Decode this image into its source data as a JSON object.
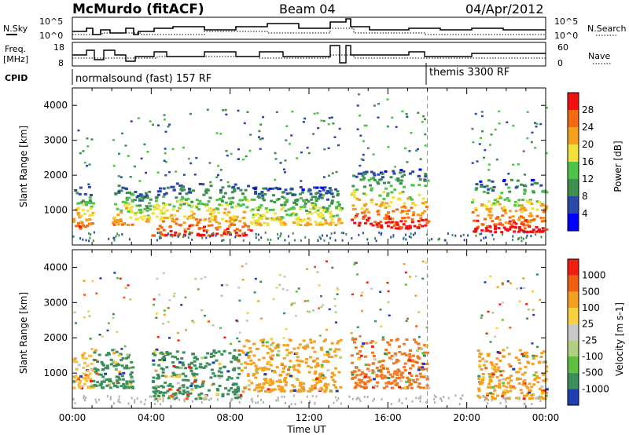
{
  "header": {
    "station": "McMurdo (fitACF)",
    "beam": "Beam 04",
    "date": "04/Apr/2012"
  },
  "params": {
    "nsky_label": "N.Sky",
    "nsearch_label": "N.Search",
    "freq_label_1": "Freq.",
    "freq_label_2": "[MHz]",
    "nave_label": "Nave",
    "cpid_label": "CPID",
    "nsky_ticks": [
      "10^5",
      "10^0"
    ],
    "nsearch_ticks": [
      "10^5",
      "10^0"
    ],
    "freq_ticks": [
      "18",
      "8"
    ],
    "nave_ticks": [
      "60",
      "0"
    ],
    "cpid_1": "normalsound (fast) 157 RF",
    "cpid_2": "themis 3300 RF"
  },
  "chart_data": [
    {
      "type": "heatmap",
      "panel": "power",
      "ylabel": "Slant Range [km]",
      "yticks": [
        "1000",
        "2000",
        "3000",
        "4000"
      ],
      "ylim": [
        0,
        4500
      ],
      "xlim": [
        0,
        24
      ],
      "colorbar_label": "Power [dB]",
      "colorbar_ticks": [
        "4",
        "8",
        "12",
        "16",
        "20",
        "24",
        "28"
      ],
      "colorbar_colors": [
        "#0000ff",
        "#2b4aa8",
        "#3f8f4f",
        "#4fc24a",
        "#f2e13a",
        "#f6a020",
        "#f56a10",
        "#f01010"
      ],
      "bands": [
        {
          "x0": 0.0,
          "x1": 1.0,
          "y0": 500,
          "y1": 1700,
          "level": 0.75
        },
        {
          "x0": 2.0,
          "x1": 3.0,
          "y0": 600,
          "y1": 1800,
          "level": 0.7
        },
        {
          "x0": 3.1,
          "x1": 3.9,
          "y0": 700,
          "y1": 1600,
          "level": 0.55
        },
        {
          "x0": 4.0,
          "x1": 9.0,
          "y0": 300,
          "y1": 1800,
          "level": 0.85
        },
        {
          "x0": 9.0,
          "x1": 13.6,
          "y0": 600,
          "y1": 1700,
          "level": 0.55
        },
        {
          "x0": 14.1,
          "x1": 18.0,
          "y0": 500,
          "y1": 2200,
          "level": 0.9
        },
        {
          "x0": 20.2,
          "x1": 24.0,
          "y0": 400,
          "y1": 1900,
          "level": 0.95
        }
      ],
      "vertical_marker": 18.0
    },
    {
      "type": "heatmap",
      "panel": "velocity",
      "ylabel": "Slant Range [km]",
      "yticks": [
        "1000",
        "2000",
        "3000",
        "4000"
      ],
      "ylim": [
        0,
        4500
      ],
      "xlim": [
        0,
        24
      ],
      "xticks": [
        "00:00",
        "04:00",
        "08:00",
        "12:00",
        "16:00",
        "20:00",
        "00:00"
      ],
      "xlabel": "Time UT",
      "colorbar_label": "Velocity [m s-1]",
      "colorbar_ticks": [
        "1000",
        "500",
        "100",
        "25",
        "-25",
        "-100",
        "-500",
        "-1000"
      ],
      "colorbar_colors": [
        "#1f3fb0",
        "#3a8f5a",
        "#5fbf3f",
        "#b0d080",
        "#c8c8c8",
        "#f8d040",
        "#f5a020",
        "#f06010",
        "#f02010"
      ],
      "bands": [
        {
          "x0": 0.0,
          "x1": 1.0,
          "y0": 600,
          "y1": 1600,
          "color": "#f5c040"
        },
        {
          "x0": 1.0,
          "x1": 3.0,
          "y0": 600,
          "y1": 1700,
          "color": "#3a8f5a"
        },
        {
          "x0": 4.0,
          "x1": 8.5,
          "y0": 300,
          "y1": 1700,
          "color": "#3a8f5a"
        },
        {
          "x0": 8.5,
          "x1": 13.6,
          "y0": 500,
          "y1": 2000,
          "color": "#f5a020"
        },
        {
          "x0": 14.1,
          "x1": 18.0,
          "y0": 600,
          "y1": 2000,
          "color": "#f07820"
        },
        {
          "x0": 20.5,
          "x1": 24.0,
          "y0": 300,
          "y1": 1700,
          "color": "#f5a020"
        }
      ],
      "vertical_marker": 18.0
    }
  ]
}
